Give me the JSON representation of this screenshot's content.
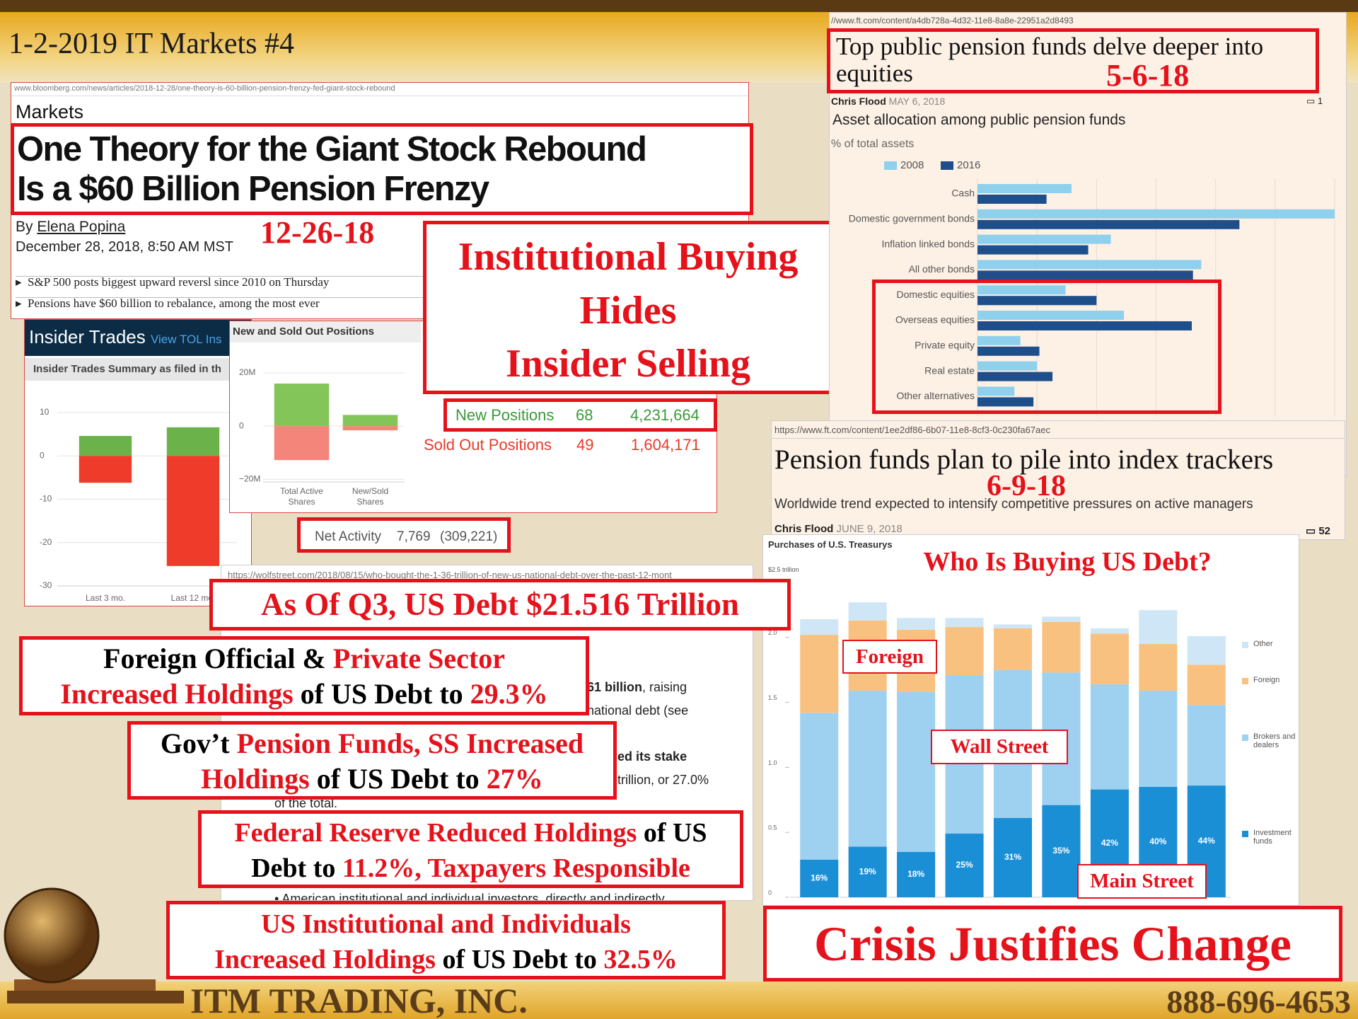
{
  "slide_title": "1-2-2019 IT Markets #4",
  "bloomberg": {
    "url": "www.bloomberg.com/news/articles/2018-12-28/one-theory-is-60-billion-pension-frenzy-fed-giant-stock-rebound",
    "section": "Markets",
    "headline": [
      "One Theory for the Giant Stock Rebound",
      "Is a $60 Billion Pension Frenzy"
    ],
    "by": "By",
    "author": "Elena Popina",
    "date": "December 28, 2018, 8:50 AM MST",
    "stamp": "12-26-18",
    "bullets": [
      "S&P 500 posts biggest upward reversl since 2010 on Thursday",
      "Pensions have $60 billion to rebalance, among the most ever"
    ]
  },
  "callout": [
    "Institutional Buying",
    "Hides",
    "Insider Selling"
  ],
  "insider": {
    "header": "Insider Trades",
    "link": "View TOL Ins",
    "subheader": "Insider Trades Summary as filed in th"
  },
  "positions": {
    "new": {
      "label": "New Positions",
      "count": "68",
      "shares": "4,231,664"
    },
    "sold": {
      "label": "Sold Out Positions",
      "count": "49",
      "shares": "1,604,171"
    },
    "net": {
      "label": "Net Activity",
      "count": "7,769",
      "shares": "(309,221)"
    }
  },
  "ft1": {
    "url": "//www.ft.com/content/a4db728a-4d32-11e8-8a8e-22951a2d8493",
    "title": "Top public pension funds delve deeper into equities",
    "stamp": "5-6-18",
    "author": "Chris Flood",
    "date": "MAY 6, 2018",
    "comments": "1"
  },
  "ft2": {
    "url": "https://www.ft.com/content/1ee2df86-6b07-11e8-8cf3-0c230fa67aec",
    "title": "Pension funds plan to pile into index trackers",
    "stamp": "6-9-18",
    "subtitle": "Worldwide trend expected to intensify competitive pressures on active managers",
    "author": "Chris Flood",
    "date": "JUNE 9, 2018",
    "comments": "52"
  },
  "wolf": {
    "url": "https://wolfstreet.com/2018/08/15/who-bought-the-1-36-trillion-of-new-us-national-debt-over-the-past-12-mont",
    "fragments": [
      [
        {
          "text": "61 billion",
          "bold": true
        },
        {
          "text": ", raising"
        }
      ],
      [
        {
          "text": "national debt (see"
        }
      ],
      [
        {
          "text": ") raised its stake",
          "bold": true
        }
      ],
      [
        {
          "text": "trillion, or 27.0%"
        }
      ],
      [
        {
          "text": "of the total."
        }
      ],
      [
        {
          "text": "American institutional and individual investors, directly and indirectly"
        }
      ]
    ]
  },
  "boxes": [
    {
      "lines": [
        [
          {
            "text": "As Of Q3, US Debt $21.516 Trillion",
            "red": true
          }
        ]
      ]
    },
    {
      "lines": [
        [
          {
            "text": "Foreign Official & "
          },
          {
            "text": "Private Sector",
            "red": true
          }
        ],
        [
          {
            "text": "Increased Holdings",
            "red": true
          },
          {
            "text": " of US Debt to "
          },
          {
            "text": "29.3%",
            "red": true
          }
        ]
      ]
    },
    {
      "lines": [
        [
          {
            "text": "Gov’t "
          },
          {
            "text": "Pension Funds, SS Increased",
            "red": true
          }
        ],
        [
          {
            "text": "Holdings",
            "red": true
          },
          {
            "text": " of US Debt to "
          },
          {
            "text": "27%",
            "red": true
          }
        ]
      ]
    },
    {
      "lines": [
        [
          {
            "text": "Federal Reserve Reduced Holdings",
            "red": true
          },
          {
            "text": " of US"
          }
        ],
        [
          {
            "text": "Debt to "
          },
          {
            "text": "11.2%, Taxpayers Responsible",
            "red": true
          }
        ]
      ]
    },
    {
      "lines": [
        [
          {
            "text": "US Institutional and Individuals",
            "red": true
          }
        ],
        [
          {
            "text": "Increased Holdings",
            "red": true
          },
          {
            "text": " of US Debt to "
          },
          {
            "text": "32.5%",
            "red": true
          }
        ]
      ]
    }
  ],
  "conclusion": "Crisis Justifies Change",
  "footer": {
    "company": "ITM TRADING, INC.",
    "phone": "888-696-4653"
  },
  "chart_data": [
    {
      "type": "bar",
      "orientation": "horizontal",
      "title": "Asset allocation among public pension funds",
      "subtitle": "% of total assets",
      "categories": [
        "Cash",
        "Domestic government bonds",
        "Inflation linked bonds",
        "All other bonds",
        "Domestic equities",
        "Overseas equities",
        "Private equity",
        "Real estate",
        "Other alternatives"
      ],
      "series": [
        {
          "name": "2008",
          "color": "#8fd0ec",
          "values": [
            7.9,
            30,
            11.2,
            18.8,
            7.4,
            12.3,
            3.6,
            5,
            3.1
          ]
        },
        {
          "name": "2016",
          "color": "#1f4f8a",
          "values": [
            5.8,
            22,
            9.3,
            18.1,
            10,
            18,
            5.2,
            6.3,
            4.7
          ]
        }
      ],
      "xlim": [
        0,
        30
      ],
      "xticks": [
        0,
        5,
        10,
        15,
        20,
        25,
        30
      ],
      "grid": true,
      "legend": "top-left"
    },
    {
      "type": "bar",
      "stacked": true,
      "categories": [
        "Last 3 mo.",
        "Last 12 mo."
      ],
      "series": [
        {
          "color": "#6cb24a",
          "values": [
            4.6,
            6.6
          ]
        },
        {
          "color": "#ee3b2a",
          "values": [
            -6.2,
            -25.4
          ]
        }
      ],
      "ylim": [
        -30,
        10
      ],
      "yticks": [
        10,
        0,
        -10,
        -20,
        -30
      ],
      "grid": true
    },
    {
      "type": "bar",
      "stacked": true,
      "title": "New and Sold Out Positions",
      "categories": [
        "Total Active Shares",
        "New/Sold Shares"
      ],
      "series": [
        {
          "color": "#84c55a",
          "values": [
            16,
            4.2
          ]
        },
        {
          "color": "#f4857b",
          "values": [
            -12.8,
            -1.6
          ]
        }
      ],
      "ylim": [
        -21,
        28
      ],
      "yticks": [
        {
          "value": 20,
          "label": "20M"
        },
        0,
        {
          "value": -20,
          "label": "−20M"
        }
      ],
      "grid": true
    },
    {
      "type": "bar",
      "stacked": true,
      "title": "Purchases of U.S. Treasurys",
      "unit_label": "$2.5 trillion",
      "categories": [
        null,
        null,
        null,
        null,
        null,
        null,
        null,
        null,
        null
      ],
      "series": [
        {
          "name": "Investment funds",
          "color": "#1b8fd6",
          "values": [
            0.29,
            0.39,
            0.35,
            0.49,
            0.61,
            0.71,
            0.83,
            0.85,
            0.86
          ]
        },
        {
          "name": "Brokers and dealers",
          "color": "#9ed0ef",
          "values": [
            1.13,
            1.2,
            1.23,
            1.22,
            1.14,
            1.02,
            0.81,
            0.74,
            0.62
          ]
        },
        {
          "name": "Foreign",
          "color": "#f9c17f",
          "values": [
            0.6,
            0.54,
            0.48,
            0.37,
            0.32,
            0.39,
            0.39,
            0.36,
            0.31
          ]
        },
        {
          "name": "Other",
          "color": "#cfe6f6",
          "values": [
            0.12,
            0.14,
            0.09,
            0.07,
            0.03,
            0.04,
            0.04,
            0.26,
            0.22
          ]
        }
      ],
      "share_labels": [
        "16%",
        "19%",
        "18%",
        "25%",
        "31%",
        "35%",
        "42%",
        "40%",
        "44%"
      ],
      "ylim": [
        0,
        2.5
      ],
      "yticks": [
        0,
        0.5,
        {
          "value": 1,
          "label": "1.0"
        },
        1.5,
        {
          "value": 2,
          "label": "2.0"
        }
      ],
      "grid": false,
      "legend": "right",
      "annotations": [
        "Who Is Buying US Debt?",
        "Foreign",
        "Wall Street",
        "Main Street"
      ]
    }
  ]
}
